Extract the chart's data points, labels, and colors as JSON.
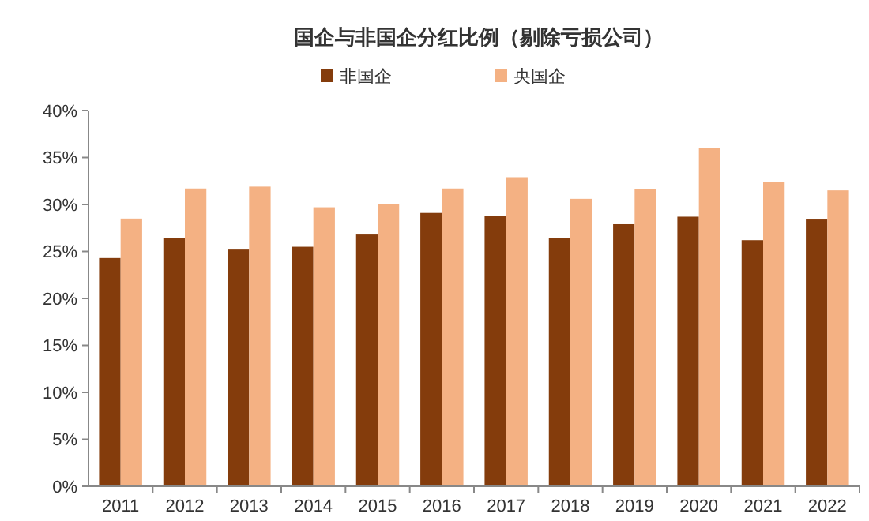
{
  "chart_data": {
    "type": "bar",
    "title": "国企与非国企分红比例（剔除亏损公司）",
    "categories": [
      "2011",
      "2012",
      "2013",
      "2014",
      "2015",
      "2016",
      "2017",
      "2018",
      "2019",
      "2020",
      "2021",
      "2022"
    ],
    "series": [
      {
        "name": "非国企",
        "color": "#843c0c",
        "values": [
          24.3,
          26.4,
          25.2,
          25.5,
          26.8,
          29.1,
          28.8,
          26.4,
          27.9,
          28.7,
          26.2,
          28.4
        ]
      },
      {
        "name": "央国企",
        "color": "#f4b183",
        "values": [
          28.5,
          31.7,
          31.9,
          29.7,
          30.0,
          31.7,
          32.9,
          30.6,
          31.6,
          36.0,
          32.4,
          31.5
        ]
      }
    ],
    "ylim": [
      0,
      40
    ],
    "yticks": [
      {
        "value": 0,
        "label": "0%"
      },
      {
        "value": 5,
        "label": "5%"
      },
      {
        "value": 10,
        "label": "10%"
      },
      {
        "value": 15,
        "label": "15%"
      },
      {
        "value": 20,
        "label": "20%"
      },
      {
        "value": 25,
        "label": "25%"
      },
      {
        "value": 30,
        "label": "30%"
      },
      {
        "value": 35,
        "label": "35%"
      },
      {
        "value": 40,
        "label": "40%"
      }
    ],
    "legend": "top",
    "grid": false
  }
}
